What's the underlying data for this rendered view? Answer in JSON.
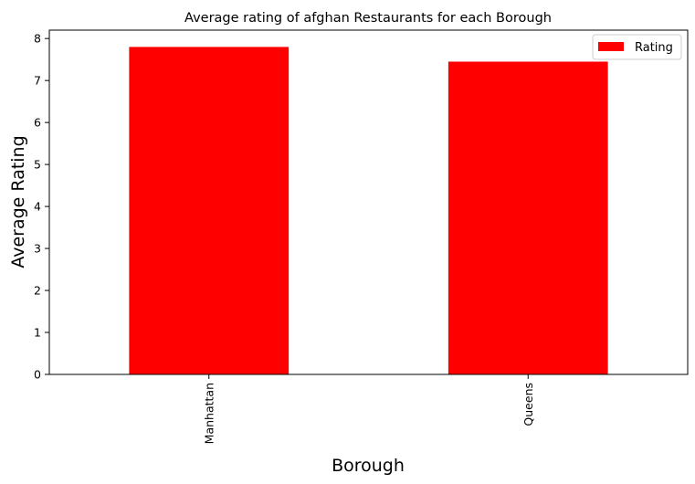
{
  "chart_data": {
    "type": "bar",
    "title": "Average rating of afghan Restaurants for each Borough",
    "xlabel": "Borough",
    "ylabel": "Average Rating",
    "categories": [
      "Manhattan",
      "Queens"
    ],
    "series": [
      {
        "name": "Rating",
        "values": [
          7.8,
          7.45
        ],
        "color": "#ff0000"
      }
    ],
    "ylim": [
      0,
      8.2
    ],
    "yticks": [
      0,
      1,
      2,
      3,
      4,
      5,
      6,
      7,
      8
    ],
    "grid": false,
    "legend_position": "top-right"
  }
}
